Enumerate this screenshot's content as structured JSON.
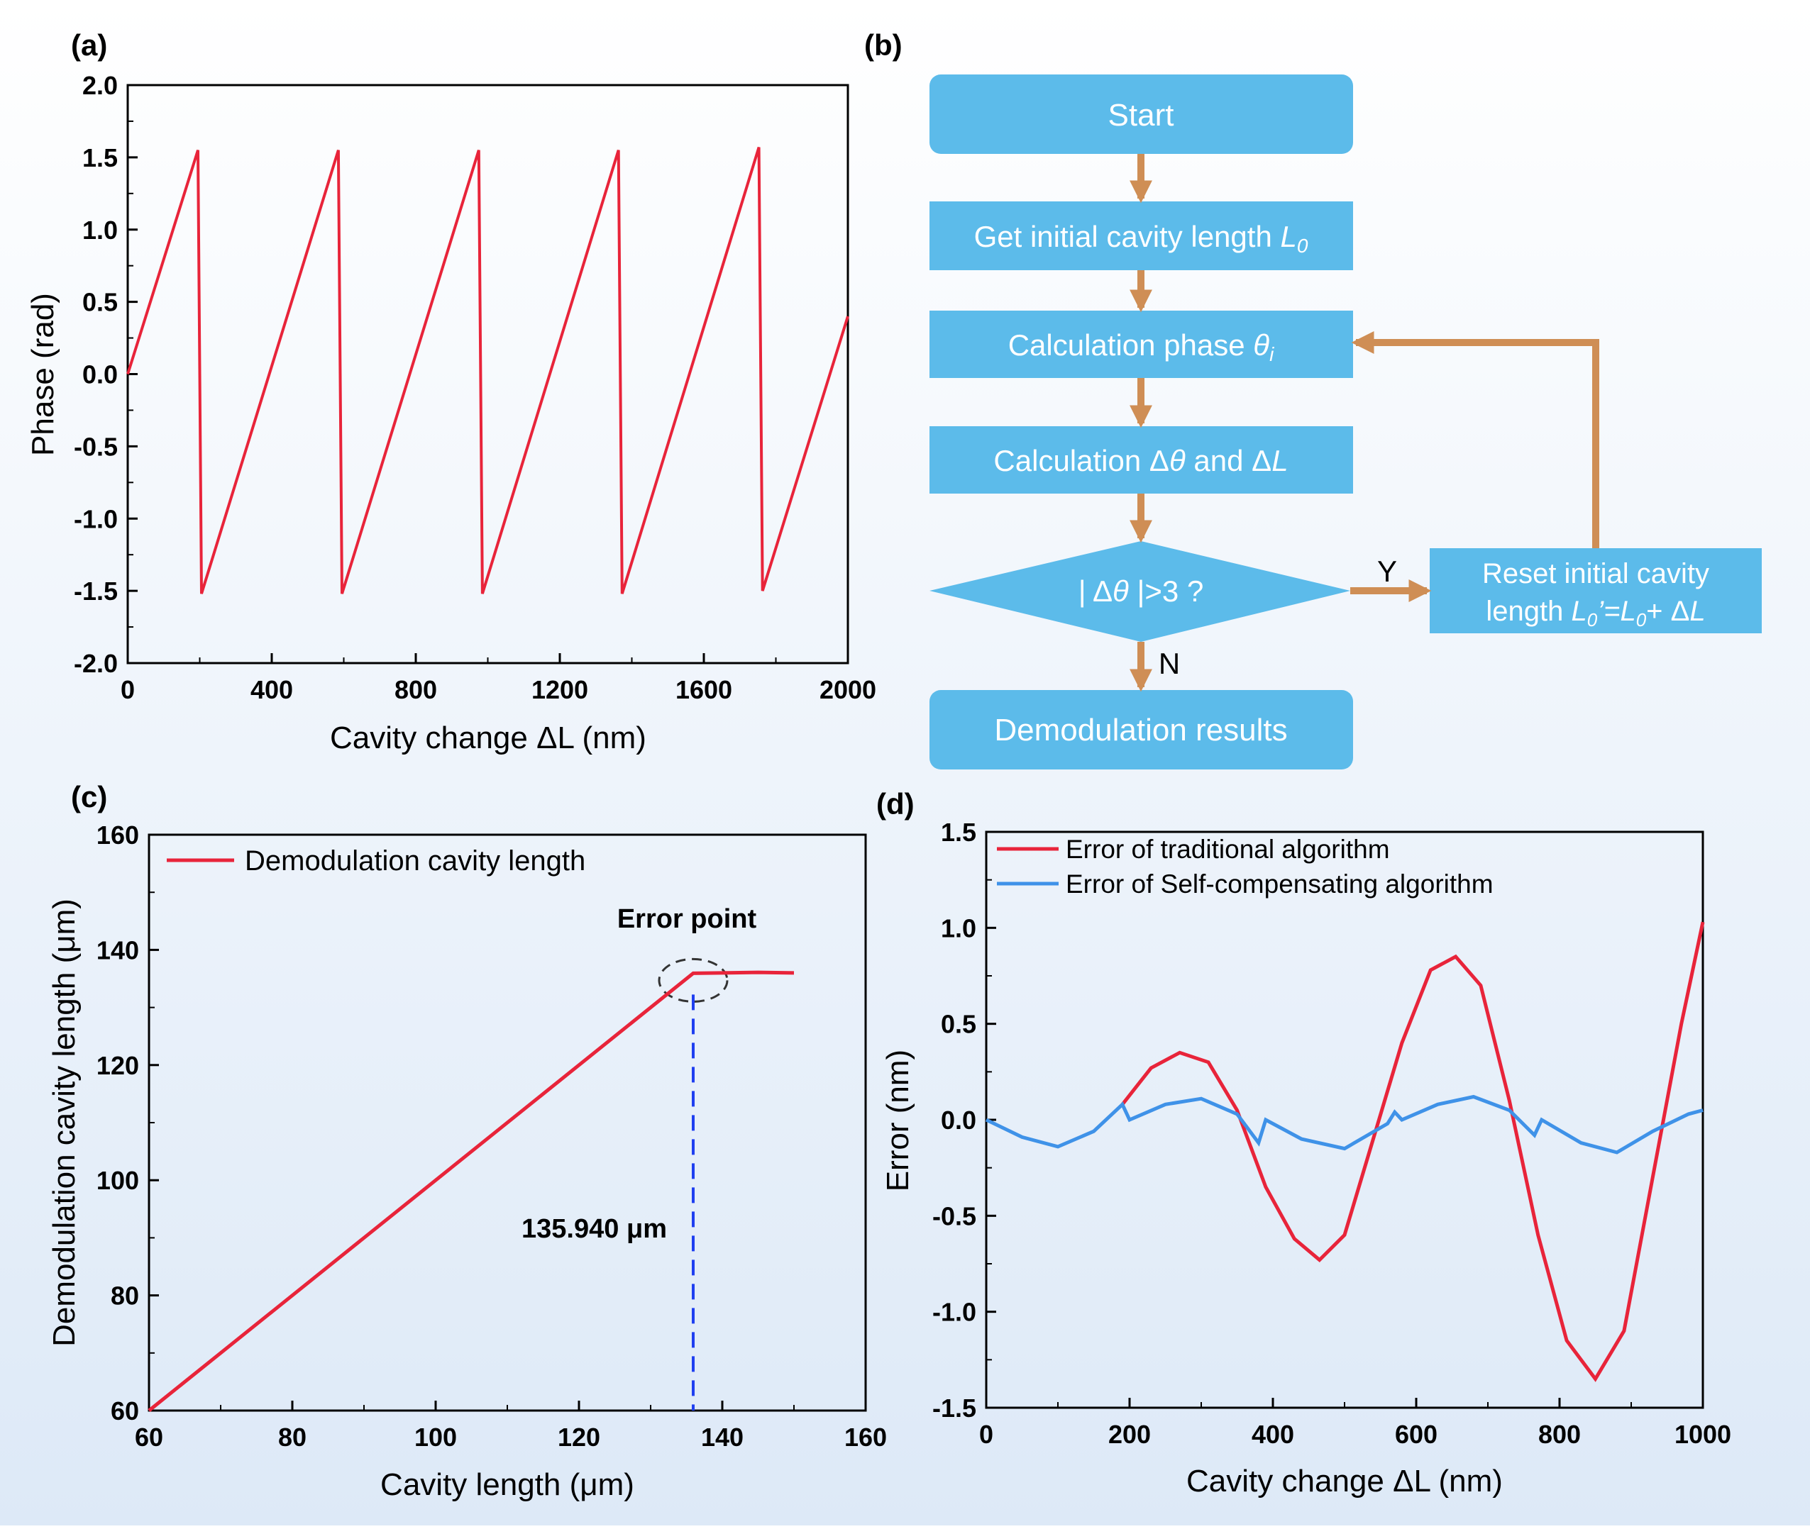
{
  "colors": {
    "bg_top": "#ffffff",
    "bg_bottom": "#dde9f7",
    "red": "#e8243a",
    "blue": "#3f92e8",
    "box": "#5cbbea",
    "arrow": "#cf8e55",
    "dash_blue": "#1f3ff0"
  },
  "chart_data": [
    {
      "panel": "(a)",
      "type": "line",
      "xlabel": "Cavity change ΔL (nm)",
      "ylabel": "Phase (rad)",
      "xlim": [
        0,
        2000
      ],
      "ylim": [
        -2.0,
        2.0
      ],
      "xticks": [
        "0",
        "400",
        "800",
        "1200",
        "1600",
        "2000"
      ],
      "yticks": [
        "2.0",
        "1.5",
        "1.0",
        "0.5",
        "0.0",
        "-0.5",
        "-1.0",
        "-1.5",
        "-2.0"
      ],
      "series": [
        {
          "name": "Phase",
          "x": [
            0,
            195,
            205,
            585,
            595,
            975,
            985,
            1363,
            1373,
            1753,
            1763,
            2000
          ],
          "y": [
            0.0,
            1.55,
            -1.52,
            1.55,
            -1.52,
            1.55,
            -1.52,
            1.55,
            -1.52,
            1.57,
            -1.5,
            0.4
          ]
        }
      ]
    },
    {
      "panel": "(c)",
      "type": "line",
      "xlabel": "Cavity length (μm)",
      "ylabel": "Demodulation cavity length (μm)",
      "xlim": [
        60,
        160
      ],
      "ylim": [
        60,
        160
      ],
      "xticks": [
        "60",
        "80",
        "100",
        "120",
        "140",
        "160"
      ],
      "yticks": [
        "160",
        "140",
        "120",
        "100",
        "80",
        "60"
      ],
      "legend": [
        "Demodulation cavity length"
      ],
      "annotations": {
        "error_point": "Error point",
        "value_label": "135.940 μm",
        "error_x": 135.94
      },
      "series": [
        {
          "name": "Demodulation cavity length",
          "x": [
            60,
            135.94,
            140,
            145,
            150
          ],
          "y": [
            60,
            135.94,
            136.0,
            136.1,
            136.0
          ]
        }
      ]
    },
    {
      "panel": "(d)",
      "type": "line",
      "xlabel": "Cavity change ΔL (nm)",
      "ylabel": "Error (nm)",
      "xlim": [
        0,
        1000
      ],
      "ylim": [
        -1.5,
        1.5
      ],
      "xticks": [
        "0",
        "200",
        "400",
        "600",
        "800",
        "1000"
      ],
      "yticks": [
        "1.5",
        "1.0",
        "0.5",
        "0.0",
        "-0.5",
        "-1.0",
        "-1.5"
      ],
      "legend": [
        "Error of traditional algorithm",
        "Error of Self-compensating algorithm"
      ],
      "series": [
        {
          "name": "Error of traditional algorithm",
          "x": [
            190,
            230,
            270,
            310,
            350,
            390,
            430,
            465,
            500,
            540,
            580,
            620,
            655,
            690,
            730,
            770,
            810,
            850,
            890,
            930,
            970,
            1000
          ],
          "y": [
            0.08,
            0.27,
            0.35,
            0.3,
            0.05,
            -0.35,
            -0.62,
            -0.73,
            -0.6,
            -0.1,
            0.4,
            0.78,
            0.85,
            0.7,
            0.1,
            -0.6,
            -1.15,
            -1.35,
            -1.1,
            -0.3,
            0.5,
            1.03
          ]
        },
        {
          "name": "Error of Self-compensating algorithm",
          "x": [
            0,
            50,
            100,
            150,
            190,
            200,
            250,
            300,
            350,
            380,
            390,
            440,
            500,
            560,
            570,
            580,
            630,
            680,
            730,
            765,
            775,
            830,
            880,
            930,
            980,
            1000
          ],
          "y": [
            0.0,
            -0.09,
            -0.14,
            -0.06,
            0.08,
            0.0,
            0.08,
            0.11,
            0.03,
            -0.12,
            0.0,
            -0.1,
            -0.15,
            -0.02,
            0.04,
            0.0,
            0.08,
            0.12,
            0.05,
            -0.08,
            0.0,
            -0.12,
            -0.17,
            -0.06,
            0.03,
            0.05
          ]
        }
      ]
    }
  ],
  "panel_b": {
    "label": "(b)",
    "start": "Start",
    "get_initial_prefix": "Get initial cavity length ",
    "get_initial_var": "L",
    "get_initial_sub": "0",
    "calc_phase_prefix": "Calculation phase ",
    "calc_phase_var": "θ",
    "calc_phase_sub": "i",
    "calc_delta_a": "Calculation Δ",
    "calc_delta_theta": "θ",
    "calc_delta_b": " and Δ",
    "calc_delta_L": "L",
    "decision_a": "| Δ",
    "decision_theta": "θ",
    "decision_b": " |>3 ?",
    "reset_line1": "Reset initial cavity",
    "reset_line2_a": "length ",
    "reset_L": "L",
    "reset_sub0": "0",
    "reset_prime": "’=",
    "reset_L2": "L",
    "reset_sub2": "0",
    "reset_plus": "+ Δ",
    "reset_L3": "L",
    "yes": "Y",
    "no": "N",
    "demod": "Demodulation results"
  }
}
